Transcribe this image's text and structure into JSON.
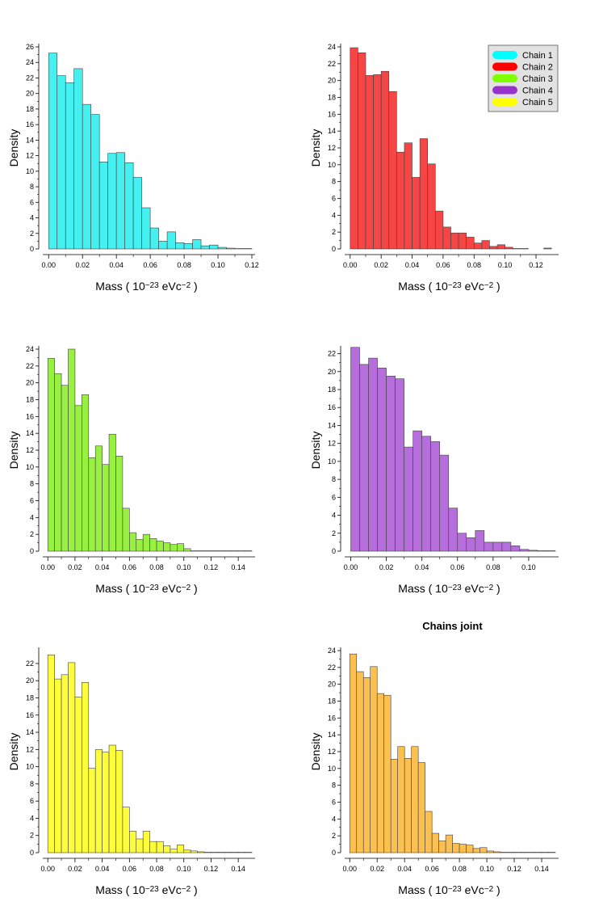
{
  "chart_data": [
    {
      "type": "bar",
      "xlabel": "Mass ( 10^-23 eVc^-2 )",
      "ylabel": "Density",
      "series": [
        {
          "name": "Chain 1",
          "color": "#44f0f0",
          "bin_width": 0.005,
          "x": [
            0.0,
            0.005,
            0.01,
            0.015,
            0.02,
            0.025,
            0.03,
            0.035,
            0.04,
            0.045,
            0.05,
            0.055,
            0.06,
            0.065,
            0.07,
            0.075,
            0.08,
            0.085,
            0.09,
            0.095,
            0.1,
            0.105,
            0.11,
            0.115
          ],
          "values": [
            25.2,
            22.3,
            21.4,
            23.2,
            18.6,
            17.3,
            11.2,
            12.3,
            12.4,
            11.1,
            9.2,
            5.3,
            2.7,
            1.0,
            2.2,
            0.8,
            0.7,
            1.2,
            0.4,
            0.5,
            0.2,
            0.1,
            0.05,
            0.05
          ]
        }
      ],
      "xlim": [
        -0.0025,
        0.12
      ],
      "ylim": [
        0,
        26
      ],
      "xticks": [
        0.0,
        0.02,
        0.04,
        0.06,
        0.08,
        0.1,
        0.12
      ],
      "yticks": [
        0,
        2,
        4,
        6,
        8,
        10,
        12,
        14,
        16,
        18,
        20,
        22,
        24,
        26
      ]
    },
    {
      "type": "bar",
      "xlabel": "Mass ( 10^-23 eVc^-2 )",
      "ylabel": "Density",
      "series": [
        {
          "name": "Chain 2",
          "color": "#f54545",
          "bin_width": 0.005,
          "x": [
            0.0,
            0.005,
            0.01,
            0.015,
            0.02,
            0.025,
            0.03,
            0.035,
            0.04,
            0.045,
            0.05,
            0.055,
            0.06,
            0.065,
            0.07,
            0.075,
            0.08,
            0.085,
            0.09,
            0.095,
            0.1,
            0.105,
            0.11,
            0.115,
            0.12,
            0.125
          ],
          "values": [
            23.9,
            23.3,
            20.6,
            20.7,
            21.1,
            18.7,
            11.5,
            12.6,
            8.5,
            13.1,
            10.1,
            4.5,
            2.6,
            1.9,
            1.9,
            1.4,
            0.7,
            1.0,
            0.3,
            0.5,
            0.2,
            0.05,
            0.05,
            0.0,
            0.0,
            0.1
          ]
        }
      ],
      "xlim": [
        -0.0025,
        0.1325
      ],
      "ylim": [
        0,
        24
      ],
      "xticks": [
        0.0,
        0.02,
        0.04,
        0.06,
        0.08,
        0.1,
        0.12
      ],
      "yticks": [
        0,
        2,
        4,
        6,
        8,
        10,
        12,
        14,
        16,
        18,
        20,
        22,
        24
      ]
    },
    {
      "type": "bar",
      "xlabel": "Mass ( 10^-23 eVc^-2 )",
      "ylabel": "Density",
      "series": [
        {
          "name": "Chain 3",
          "color": "#98f040",
          "bin_width": 0.005,
          "x": [
            0.0,
            0.005,
            0.01,
            0.015,
            0.02,
            0.025,
            0.03,
            0.035,
            0.04,
            0.045,
            0.05,
            0.055,
            0.06,
            0.065,
            0.07,
            0.075,
            0.08,
            0.085,
            0.09,
            0.095,
            0.1,
            0.105,
            0.11,
            0.115,
            0.12,
            0.125,
            0.13,
            0.135,
            0.14,
            0.145
          ],
          "values": [
            22.9,
            21.1,
            19.7,
            24.0,
            17.3,
            18.6,
            11.1,
            12.5,
            10.3,
            13.9,
            11.3,
            5.1,
            2.2,
            1.4,
            2.0,
            1.5,
            1.2,
            1.0,
            0.8,
            0.9,
            0.3,
            0.05,
            0.05,
            0.05,
            0.05,
            0.05,
            0.05,
            0.05,
            0.05,
            0.05
          ]
        }
      ],
      "xlim": [
        -0.0025,
        0.15
      ],
      "ylim": [
        0,
        24
      ],
      "xticks": [
        0.0,
        0.02,
        0.04,
        0.06,
        0.08,
        0.1,
        0.12,
        0.14
      ],
      "yticks": [
        0,
        2,
        4,
        6,
        8,
        10,
        12,
        14,
        16,
        18,
        20,
        22,
        24
      ]
    },
    {
      "type": "bar",
      "xlabel": "Mass ( 10^-23 eVc^-2 )",
      "ylabel": "Density",
      "series": [
        {
          "name": "Chain 4",
          "color": "#b56edb",
          "bin_width": 0.005,
          "x": [
            0.0,
            0.005,
            0.01,
            0.015,
            0.02,
            0.025,
            0.03,
            0.035,
            0.04,
            0.045,
            0.05,
            0.055,
            0.06,
            0.065,
            0.07,
            0.075,
            0.08,
            0.085,
            0.09,
            0.095,
            0.1,
            0.105,
            0.11
          ],
          "values": [
            22.7,
            20.8,
            21.5,
            20.4,
            19.5,
            19.2,
            11.6,
            13.4,
            12.8,
            12.2,
            10.7,
            4.8,
            2.0,
            1.5,
            2.3,
            1.0,
            1.0,
            1.0,
            0.6,
            0.2,
            0.1,
            0.05,
            0.05
          ]
        }
      ],
      "xlim": [
        -0.0025,
        0.115
      ],
      "ylim": [
        0,
        22.5
      ],
      "xticks": [
        0.0,
        0.02,
        0.04,
        0.06,
        0.08,
        0.1
      ],
      "yticks": [
        0,
        2,
        4,
        6,
        8,
        10,
        12,
        14,
        16,
        18,
        20,
        22
      ]
    },
    {
      "type": "bar",
      "xlabel": "Mass ( 10^-23 eVc^-2 )",
      "ylabel": "Density",
      "series": [
        {
          "name": "Chain 5",
          "color": "#fdfd3c",
          "bin_width": 0.005,
          "x": [
            0.0,
            0.005,
            0.01,
            0.015,
            0.02,
            0.025,
            0.03,
            0.035,
            0.04,
            0.045,
            0.05,
            0.055,
            0.06,
            0.065,
            0.07,
            0.075,
            0.08,
            0.085,
            0.09,
            0.095,
            0.1,
            0.105,
            0.11,
            0.115,
            0.12,
            0.125,
            0.13,
            0.135,
            0.14,
            0.145
          ],
          "values": [
            23.0,
            20.2,
            20.7,
            22.1,
            18.1,
            19.8,
            9.8,
            12.0,
            11.7,
            12.5,
            11.9,
            5.3,
            2.5,
            1.6,
            2.5,
            1.3,
            1.3,
            0.8,
            0.4,
            0.9,
            0.3,
            0.2,
            0.1,
            0.05,
            0.05,
            0.05,
            0.05,
            0.05,
            0.05,
            0.05
          ]
        }
      ],
      "xlim": [
        -0.0025,
        0.15
      ],
      "ylim": [
        0,
        23.5
      ],
      "xticks": [
        0.0,
        0.02,
        0.04,
        0.06,
        0.08,
        0.1,
        0.12,
        0.14
      ],
      "yticks": [
        0,
        2,
        4,
        6,
        8,
        10,
        12,
        14,
        16,
        18,
        20,
        22
      ]
    },
    {
      "type": "bar",
      "title": "Chains joint",
      "xlabel": "Mass ( 10^-23 eVc^-2 )",
      "ylabel": "Density",
      "series": [
        {
          "color": "#fcc050",
          "bin_width": 0.005,
          "x": [
            0.0,
            0.005,
            0.01,
            0.015,
            0.02,
            0.025,
            0.03,
            0.035,
            0.04,
            0.045,
            0.05,
            0.055,
            0.06,
            0.065,
            0.07,
            0.075,
            0.08,
            0.085,
            0.09,
            0.095,
            0.1,
            0.105,
            0.11,
            0.115,
            0.12,
            0.125,
            0.13,
            0.135,
            0.14,
            0.145
          ],
          "values": [
            23.6,
            21.5,
            20.8,
            22.1,
            18.9,
            18.7,
            11.1,
            12.6,
            11.2,
            12.6,
            10.7,
            4.9,
            2.3,
            1.4,
            2.1,
            1.1,
            1.0,
            0.9,
            0.5,
            0.6,
            0.2,
            0.1,
            0.05,
            0.05,
            0.05,
            0.05,
            0.05,
            0.05,
            0.05,
            0.05
          ]
        }
      ],
      "xlim": [
        -0.0025,
        0.15
      ],
      "ylim": [
        0,
        24
      ],
      "xticks": [
        0.0,
        0.02,
        0.04,
        0.06,
        0.08,
        0.1,
        0.12,
        0.14
      ],
      "yticks": [
        0,
        2,
        4,
        6,
        8,
        10,
        12,
        14,
        16,
        18,
        20,
        22,
        24
      ]
    }
  ],
  "legend": {
    "placement": "top-right",
    "entries": [
      {
        "label": "Chain 1",
        "color": "#00ffff"
      },
      {
        "label": "Chain 2",
        "color": "#ff0000"
      },
      {
        "label": "Chain 3",
        "color": "#7fff00"
      },
      {
        "label": "Chain 4",
        "color": "#9932cc"
      },
      {
        "label": "Chain 5",
        "color": "#ffff00"
      }
    ]
  },
  "labels": {
    "xlabel_prefix": "Mass ( 10",
    "xlabel_exp1": "−23",
    "xlabel_mid": " eVc",
    "xlabel_exp2": "−2",
    "xlabel_suffix": " )"
  }
}
